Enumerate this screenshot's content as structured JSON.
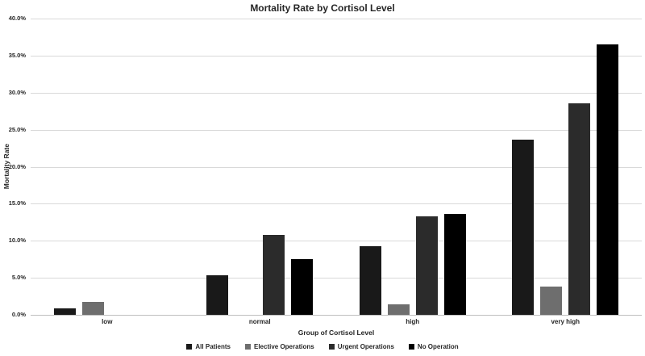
{
  "chart_data": {
    "type": "bar",
    "title": "Mortality Rate by Cortisol Level",
    "xlabel": "Group of Cortisol Level",
    "ylabel": "Mortality Rate",
    "categories": [
      "low",
      "normal",
      "high",
      "very high"
    ],
    "series": [
      {
        "name": "All Patients",
        "color": "#191919",
        "values": [
          0.9,
          5.3,
          9.3,
          23.7
        ]
      },
      {
        "name": "Elective Operations",
        "color": "#6e6e6e",
        "values": [
          1.8,
          0.0,
          1.4,
          3.8
        ]
      },
      {
        "name": "Urgent Operations",
        "color": "#2b2b2b",
        "values": [
          0.0,
          10.8,
          13.3,
          28.6
        ]
      },
      {
        "name": "No Operation",
        "color": "#000000",
        "values": [
          0.0,
          7.5,
          13.6,
          36.5
        ]
      }
    ],
    "ylim": [
      0,
      40
    ],
    "yticks": [
      0,
      5,
      10,
      15,
      20,
      25,
      30,
      35,
      40
    ],
    "ytick_labels": [
      "0.0%",
      "5.0%",
      "10.0%",
      "15.0%",
      "20.0%",
      "25.0%",
      "30.0%",
      "35.0%",
      "40.0%"
    ],
    "grid": true,
    "legend_position": "bottom",
    "colors": {
      "gridline": "#d9d9d9",
      "axis_line": "#bfbfbf",
      "text": "#262626"
    }
  }
}
